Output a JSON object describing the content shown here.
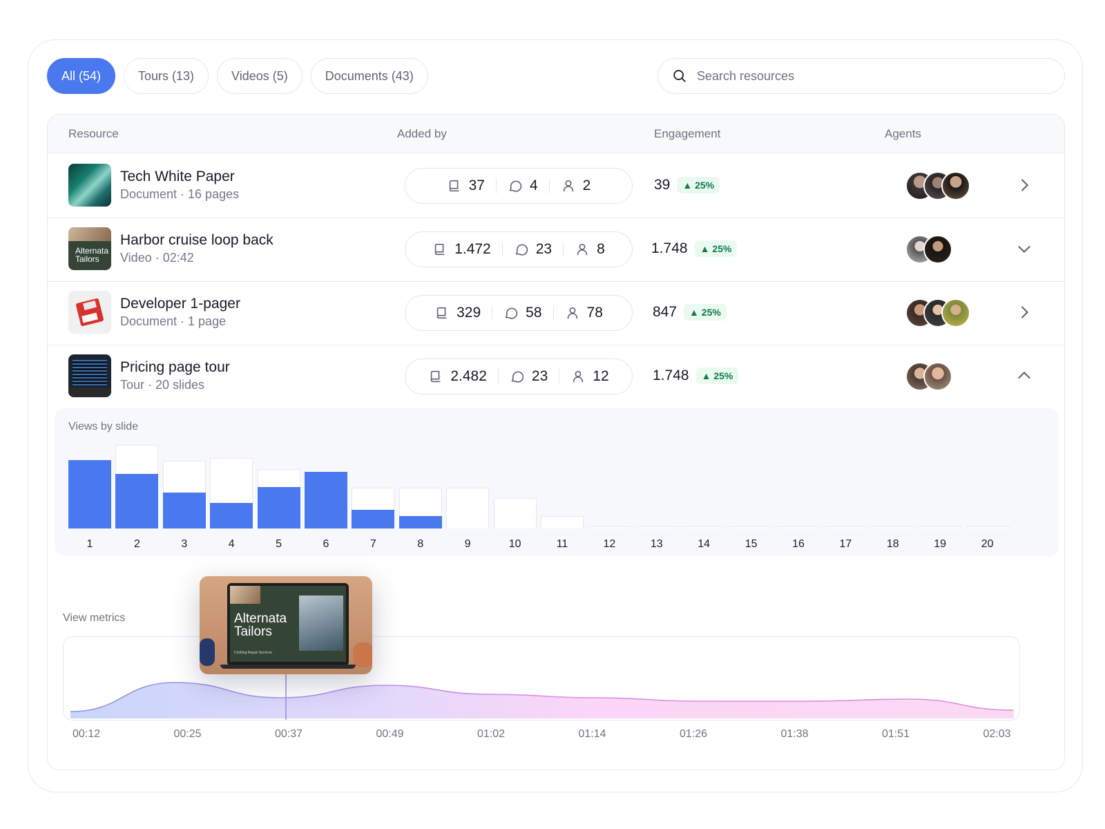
{
  "filters": [
    {
      "label": "All (54)",
      "active": true
    },
    {
      "label": "Tours (13)",
      "active": false
    },
    {
      "label": "Videos (5)",
      "active": false
    },
    {
      "label": "Documents (43)",
      "active": false
    }
  ],
  "search": {
    "placeholder": "Search resources"
  },
  "columns": {
    "resource": "Resource",
    "added_by": "Added by",
    "engagement": "Engagement",
    "agents": "Agents"
  },
  "rows": [
    {
      "title": "Tech White Paper",
      "subtitle": "Document · 16 pages",
      "stats": {
        "docs": "37",
        "comments": "4",
        "users": "2"
      },
      "engagement": "39",
      "change": "25%",
      "expand": "collapsed-right"
    },
    {
      "title": "Harbor cruise loop back",
      "subtitle": "Video · 02:42",
      "thumb_text": [
        "Alternata",
        "Tailors"
      ],
      "stats": {
        "docs": "1.472",
        "comments": "23",
        "users": "8"
      },
      "engagement": "1.748",
      "change": "25%",
      "expand": "down"
    },
    {
      "title": "Developer 1-pager",
      "subtitle": "Document · 1 page",
      "stats": {
        "docs": "329",
        "comments": "58",
        "users": "78"
      },
      "engagement": "847",
      "change": "25%",
      "expand": "collapsed-right"
    },
    {
      "title": "Pricing page tour",
      "subtitle": "Tour · 20 slides",
      "stats": {
        "docs": "2.482",
        "comments": "23",
        "users": "12"
      },
      "engagement": "1.748",
      "change": "25%",
      "expand": "up"
    }
  ],
  "views_by_slide": {
    "title": "Views by slide",
    "chart_data": {
      "type": "bar",
      "categories": [
        "1",
        "2",
        "3",
        "4",
        "5",
        "6",
        "7",
        "8",
        "9",
        "10",
        "11",
        "12",
        "13",
        "14",
        "15",
        "16",
        "17",
        "18",
        "19",
        "20"
      ],
      "series": [
        {
          "values": [
            100,
            122,
            99,
            103,
            87,
            83,
            59,
            59,
            59,
            44,
            18,
            3,
            3,
            3,
            3,
            3,
            3,
            3,
            3,
            3
          ]
        },
        {
          "values": [
            100,
            80,
            52,
            37,
            60,
            83,
            27,
            18,
            0,
            0,
            0,
            0,
            0,
            0,
            0,
            0,
            0,
            0,
            0,
            0
          ]
        }
      ],
      "ylim": [
        0,
        125
      ]
    }
  },
  "view_metrics": {
    "title": "View metrics",
    "chart_data": {
      "type": "area",
      "x": [
        "00:12",
        "00:25",
        "00:37",
        "00:49",
        "01:02",
        "01:14",
        "01:26",
        "01:38",
        "01:51",
        "02:03"
      ],
      "values": [
        10,
        52,
        30,
        48,
        35,
        30,
        25,
        25,
        28,
        12
      ],
      "ylim": [
        0,
        100
      ]
    },
    "preview": {
      "brand_line1": "Alternata",
      "brand_line2": "Tailors",
      "tagline": "Clothing Repair Services"
    }
  },
  "colors": {
    "accent": "#4a78ee",
    "badge_bg": "#eafaf1",
    "badge_text": "#137a4b"
  }
}
